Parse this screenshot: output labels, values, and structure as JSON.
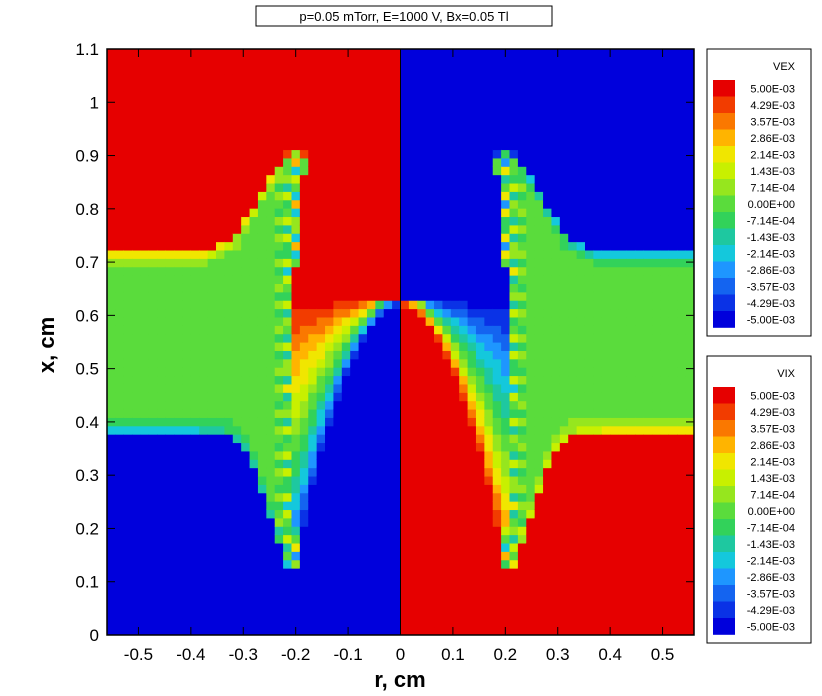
{
  "chart_data": {
    "type": "heatmap",
    "title": "p=0.05 mTorr, E=1000 V, Bx=0.05 Tl",
    "xlabel": "r, cm",
    "ylabel": "x, cm",
    "xlim": [
      -0.56,
      0.56
    ],
    "ylim": [
      0,
      1.1
    ],
    "x_ticks": [
      "-0.5",
      "-0.4",
      "-0.3",
      "-0.2",
      "-0.1",
      "0",
      "0.1",
      "0.2",
      "0.3",
      "0.4",
      "0.5"
    ],
    "x_tick_values": [
      -0.5,
      -0.4,
      -0.3,
      -0.2,
      -0.1,
      0,
      0.1,
      0.2,
      0.3,
      0.4,
      0.5
    ],
    "y_ticks": [
      "0",
      "0.1",
      "0.2",
      "0.3",
      "0.4",
      "0.5",
      "0.6",
      "0.7",
      "0.8",
      "0.9",
      "1",
      "1.1"
    ],
    "y_tick_values": [
      0,
      0.1,
      0.2,
      0.3,
      0.4,
      0.5,
      0.6,
      0.7,
      0.8,
      0.9,
      1.0,
      1.1
    ],
    "left_half_variable": "VEX",
    "right_half_variable": "VIX",
    "value_range": [
      -0.005,
      0.005
    ],
    "legends": [
      {
        "title": "VEX",
        "levels": [
          "5.00E-03",
          "4.29E-03",
          "3.57E-03",
          "2.86E-03",
          "2.14E-03",
          "1.43E-03",
          "7.14E-04",
          "0.00E+00",
          "-7.14E-04",
          "-1.43E-03",
          "-2.14E-03",
          "-2.86E-03",
          "-3.57E-03",
          "-4.29E-03",
          "-5.00E-03"
        ]
      },
      {
        "title": "VIX",
        "levels": [
          "5.00E-03",
          "4.29E-03",
          "3.57E-03",
          "2.86E-03",
          "2.14E-03",
          "1.43E-03",
          "7.14E-04",
          "0.00E+00",
          "-7.14E-04",
          "-1.43E-03",
          "-2.14E-03",
          "-2.86E-03",
          "-3.57E-03",
          "-4.29E-03",
          "-5.00E-03"
        ]
      }
    ],
    "colormap": [
      "#e60000",
      "#f23c00",
      "#fa7800",
      "#ffb400",
      "#f0e600",
      "#c8f000",
      "#96e61e",
      "#5adc3c",
      "#32d25a",
      "#1ec8a0",
      "#14c8dc",
      "#1e96ff",
      "#1464f0",
      "#0a32e6",
      "#0000dc"
    ],
    "grid": false
  }
}
